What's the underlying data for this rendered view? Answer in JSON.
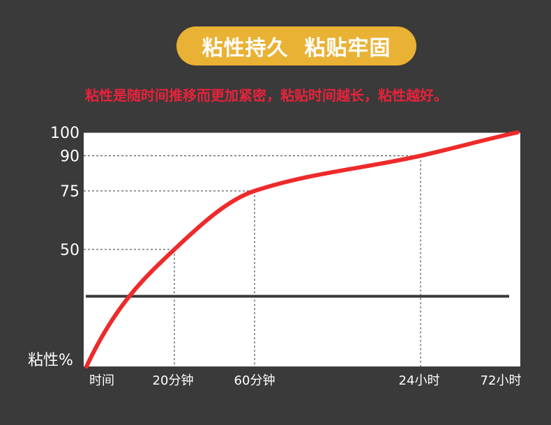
{
  "header": {
    "title": "粘性持久  粘贴牢固",
    "subtitle": "粘性是随时间推移而更加紧密，粘贴时间越长，粘性越好。"
  },
  "colors": {
    "background": "#3a3a3a",
    "pill": "#e9b234",
    "subtitle": "#e8223a",
    "curve": "#ee2a2a",
    "plot_bg": "#ffffff",
    "baseline": "#3a3a3a"
  },
  "chart_data": {
    "type": "line",
    "ylabel": "粘性%",
    "ylim": [
      0,
      100
    ],
    "y_ticks": [
      {
        "value": 100,
        "label": "100"
      },
      {
        "value": 90,
        "label": "90"
      },
      {
        "value": 75,
        "label": "75"
      },
      {
        "value": 50,
        "label": "50"
      }
    ],
    "x_ticks": [
      "时间",
      "20分钟",
      "60分钟",
      "24小时",
      "72小时"
    ],
    "markers": [
      {
        "x": "20分钟",
        "y": 50
      },
      {
        "x": "60分钟",
        "y": 75
      },
      {
        "x": "24小时",
        "y": 90
      }
    ],
    "series": [
      {
        "x": [
          "时间",
          "20分钟",
          "60分钟",
          "24小时",
          "72小时"
        ],
        "values": [
          0,
          50,
          75,
          90,
          100
        ]
      }
    ],
    "reference_line": {
      "y": 30
    },
    "grid": false
  }
}
